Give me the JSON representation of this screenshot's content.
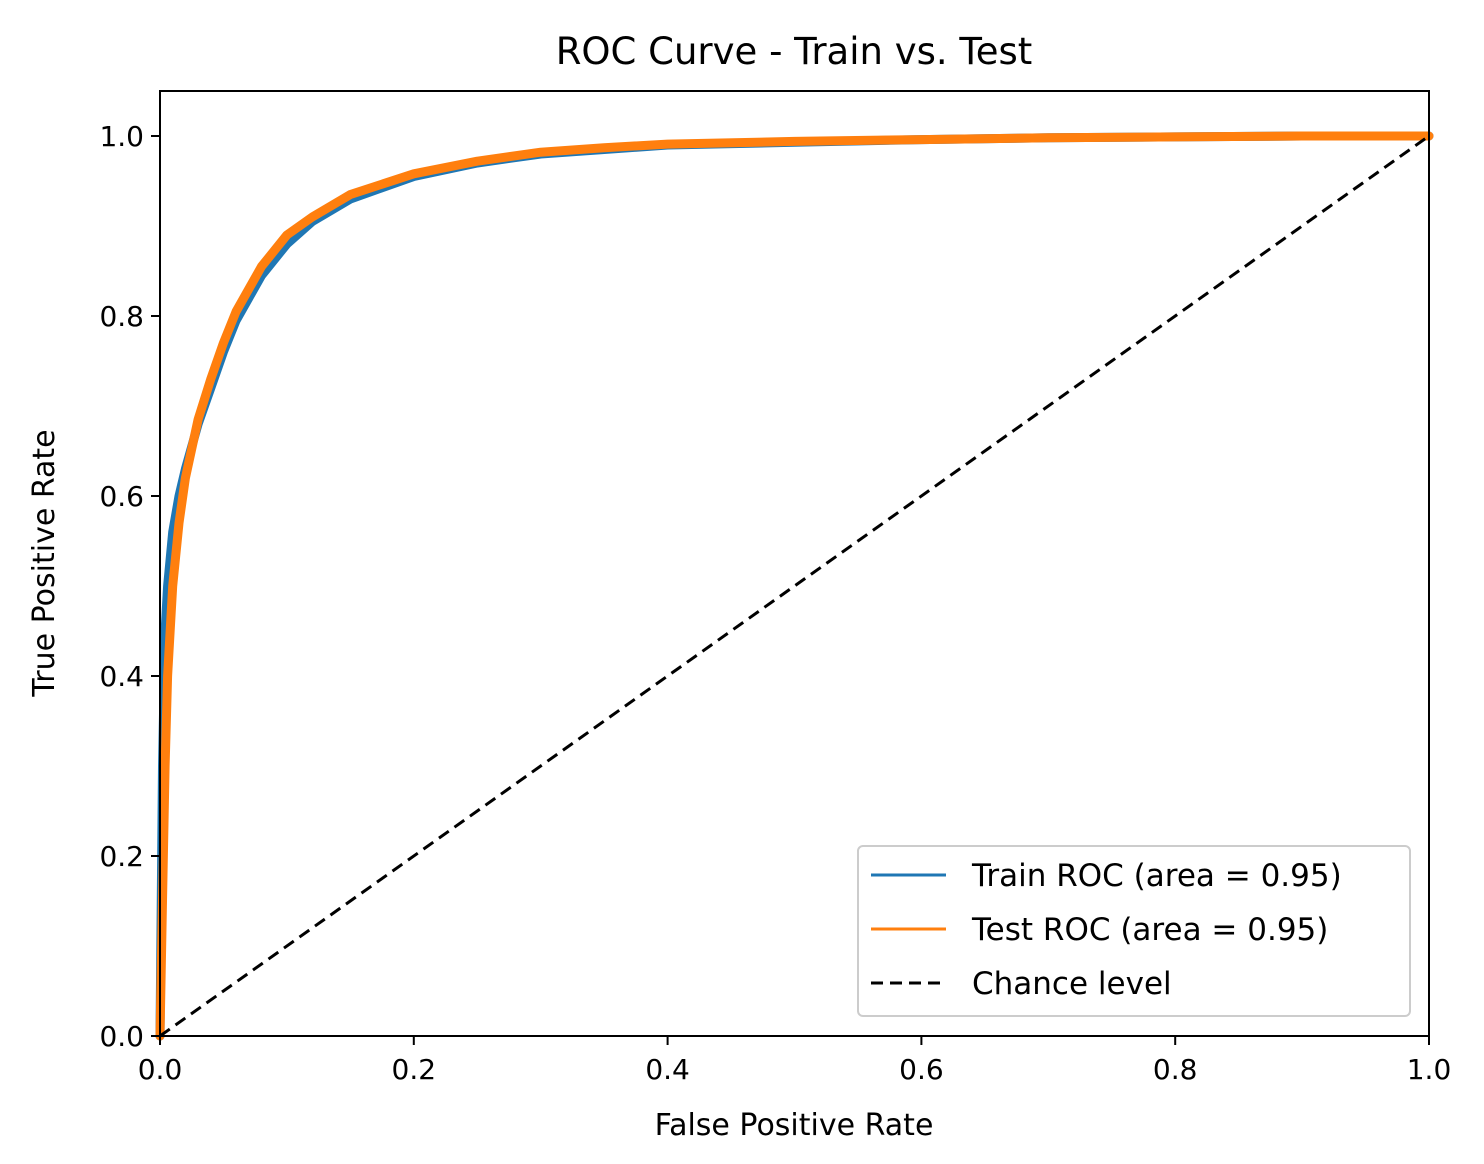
{
  "chart_data": {
    "type": "line",
    "title": "ROC Curve - Train vs. Test",
    "xlabel": "False Positive Rate",
    "ylabel": "True Positive Rate",
    "xlim": [
      0.0,
      1.0
    ],
    "ylim": [
      0.0,
      1.05
    ],
    "x_ticks": [
      0.0,
      0.2,
      0.4,
      0.6,
      0.8,
      1.0
    ],
    "x_tick_labels": [
      "0.0",
      "0.2",
      "0.4",
      "0.6",
      "0.8",
      "1.0"
    ],
    "y_ticks": [
      0.0,
      0.2,
      0.4,
      0.6,
      0.8,
      1.0
    ],
    "y_tick_labels": [
      "0.0",
      "0.2",
      "0.4",
      "0.6",
      "0.8",
      "1.0"
    ],
    "grid": false,
    "legend_position": "lower-right",
    "series": [
      {
        "name": "Train ROC (area = 0.95)",
        "color": "#1f77b4",
        "style": "solid",
        "x": [
          0.0,
          0.002,
          0.004,
          0.006,
          0.01,
          0.015,
          0.02,
          0.03,
          0.04,
          0.05,
          0.06,
          0.07,
          0.08,
          0.1,
          0.12,
          0.15,
          0.2,
          0.25,
          0.3,
          0.35,
          0.4,
          0.5,
          0.6,
          0.7,
          0.8,
          0.9,
          1.0
        ],
        "y": [
          0.0,
          0.3,
          0.45,
          0.5,
          0.56,
          0.6,
          0.63,
          0.68,
          0.72,
          0.76,
          0.795,
          0.82,
          0.845,
          0.88,
          0.905,
          0.93,
          0.955,
          0.97,
          0.98,
          0.985,
          0.99,
          0.993,
          0.996,
          0.998,
          0.999,
          1.0,
          1.0
        ]
      },
      {
        "name": "Test ROC (area = 0.95)",
        "color": "#ff7f0e",
        "style": "solid",
        "x": [
          0.0,
          0.002,
          0.004,
          0.006,
          0.01,
          0.015,
          0.02,
          0.03,
          0.04,
          0.05,
          0.06,
          0.07,
          0.08,
          0.1,
          0.12,
          0.15,
          0.2,
          0.25,
          0.3,
          0.35,
          0.4,
          0.5,
          0.6,
          0.7,
          0.8,
          0.9,
          1.0
        ],
        "y": [
          0.0,
          0.15,
          0.3,
          0.4,
          0.5,
          0.57,
          0.62,
          0.685,
          0.73,
          0.77,
          0.805,
          0.83,
          0.855,
          0.89,
          0.91,
          0.935,
          0.958,
          0.972,
          0.982,
          0.987,
          0.991,
          0.994,
          0.996,
          0.998,
          0.999,
          1.0,
          1.0
        ]
      },
      {
        "name": "Chance level",
        "color": "#000000",
        "style": "dashed",
        "x": [
          0.0,
          1.0
        ],
        "y": [
          0.0,
          1.0
        ]
      }
    ]
  }
}
